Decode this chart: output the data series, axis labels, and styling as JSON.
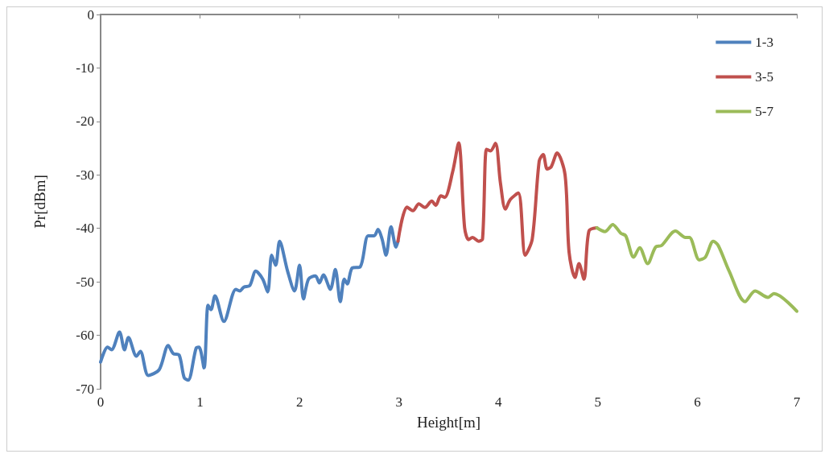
{
  "chart_data": {
    "type": "line",
    "xlabel": "Height[m]",
    "ylabel": "Pr[dBm]",
    "xlim": [
      0,
      7
    ],
    "xticks": [
      0,
      1,
      2,
      3,
      4,
      5,
      6,
      7
    ],
    "ylim": [
      -70,
      0
    ],
    "yticks": [
      -70,
      -60,
      -50,
      -40,
      -30,
      -20,
      -10,
      0
    ],
    "grid": false,
    "legend": "top right",
    "marker": "none",
    "line_style": "solid",
    "series": [
      {
        "name": "1-3",
        "color": "#4f81bd",
        "x": [
          0,
          0.07,
          0.11,
          0.19,
          0.24,
          0.28,
          0.36,
          0.4,
          0.48,
          0.59,
          0.68,
          0.73,
          0.79,
          0.84,
          0.88,
          0.96,
          0.99,
          1.04,
          1.08,
          1.11,
          1.15,
          1.24,
          1.36,
          1.4,
          1.44,
          1.5,
          1.56,
          1.63,
          1.68,
          1.72,
          1.76,
          1.8,
          1.88,
          1.95,
          2.0,
          2.04,
          2.09,
          2.16,
          2.2,
          2.24,
          2.31,
          2.36,
          2.41,
          2.45,
          2.48,
          2.53,
          2.61,
          2.69,
          2.75,
          2.79,
          2.83,
          2.87,
          2.92,
          2.97,
          2.99
        ],
        "values": [
          -65.0,
          -62.2,
          -62.7,
          -59.4,
          -62.7,
          -60.4,
          -63.9,
          -63.0,
          -67.5,
          -66.4,
          -61.9,
          -63.4,
          -63.7,
          -67.9,
          -68.4,
          -62.4,
          -62.2,
          -66.1,
          -54.4,
          -55.2,
          -52.6,
          -57.4,
          -51.4,
          -51.7,
          -51.0,
          -50.7,
          -48.0,
          -49.5,
          -51.9,
          -45.0,
          -46.9,
          -42.4,
          -48.0,
          -51.7,
          -46.9,
          -53.2,
          -49.5,
          -48.9,
          -50.2,
          -48.7,
          -51.4,
          -47.7,
          -53.7,
          -49.5,
          -50.4,
          -47.4,
          -47.2,
          -41.4,
          -41.4,
          -40.2,
          -42.0,
          -45.0,
          -39.7,
          -43.5,
          -42.4
        ]
      },
      {
        "name": "3-5",
        "color": "#c0504d",
        "x": [
          2.99,
          3.08,
          3.14,
          3.2,
          3.26,
          3.33,
          3.37,
          3.42,
          3.46,
          3.54,
          3.6,
          3.66,
          3.7,
          3.74,
          3.8,
          3.84,
          3.88,
          3.92,
          3.97,
          4.02,
          4.07,
          4.12,
          4.2,
          4.27,
          4.34,
          4.41,
          4.45,
          4.49,
          4.53,
          4.59,
          4.67,
          4.71,
          4.77,
          4.81,
          4.86,
          4.91,
          4.99
        ],
        "values": [
          -42.4,
          -36.0,
          -36.7,
          -35.4,
          -36.1,
          -34.9,
          -35.7,
          -33.9,
          -34.2,
          -29.4,
          -24.0,
          -39.9,
          -42.1,
          -41.7,
          -42.4,
          -42.0,
          -25.2,
          -25.5,
          -24.1,
          -31.5,
          -36.4,
          -34.6,
          -33.4,
          -45.0,
          -42.0,
          -27.4,
          -26.2,
          -28.9,
          -28.5,
          -25.9,
          -30.0,
          -44.4,
          -49.2,
          -46.6,
          -49.5,
          -40.5,
          -39.9
        ]
      },
      {
        "name": "5-7",
        "color": "#9bbb59",
        "x": [
          4.99,
          5.07,
          5.15,
          5.23,
          5.28,
          5.36,
          5.42,
          5.5,
          5.58,
          5.64,
          5.78,
          5.88,
          5.92,
          6.02,
          6.08,
          6.16,
          6.21,
          6.32,
          6.48,
          6.58,
          6.71,
          6.77,
          7.0
        ],
        "values": [
          -39.9,
          -40.6,
          -39.3,
          -40.9,
          -41.4,
          -45.4,
          -43.6,
          -46.6,
          -43.5,
          -43.2,
          -40.5,
          -41.7,
          -41.7,
          -45.9,
          -45.4,
          -42.4,
          -43.2,
          -48.0,
          -53.7,
          -51.7,
          -52.9,
          -52.2,
          -55.5
        ]
      }
    ]
  }
}
